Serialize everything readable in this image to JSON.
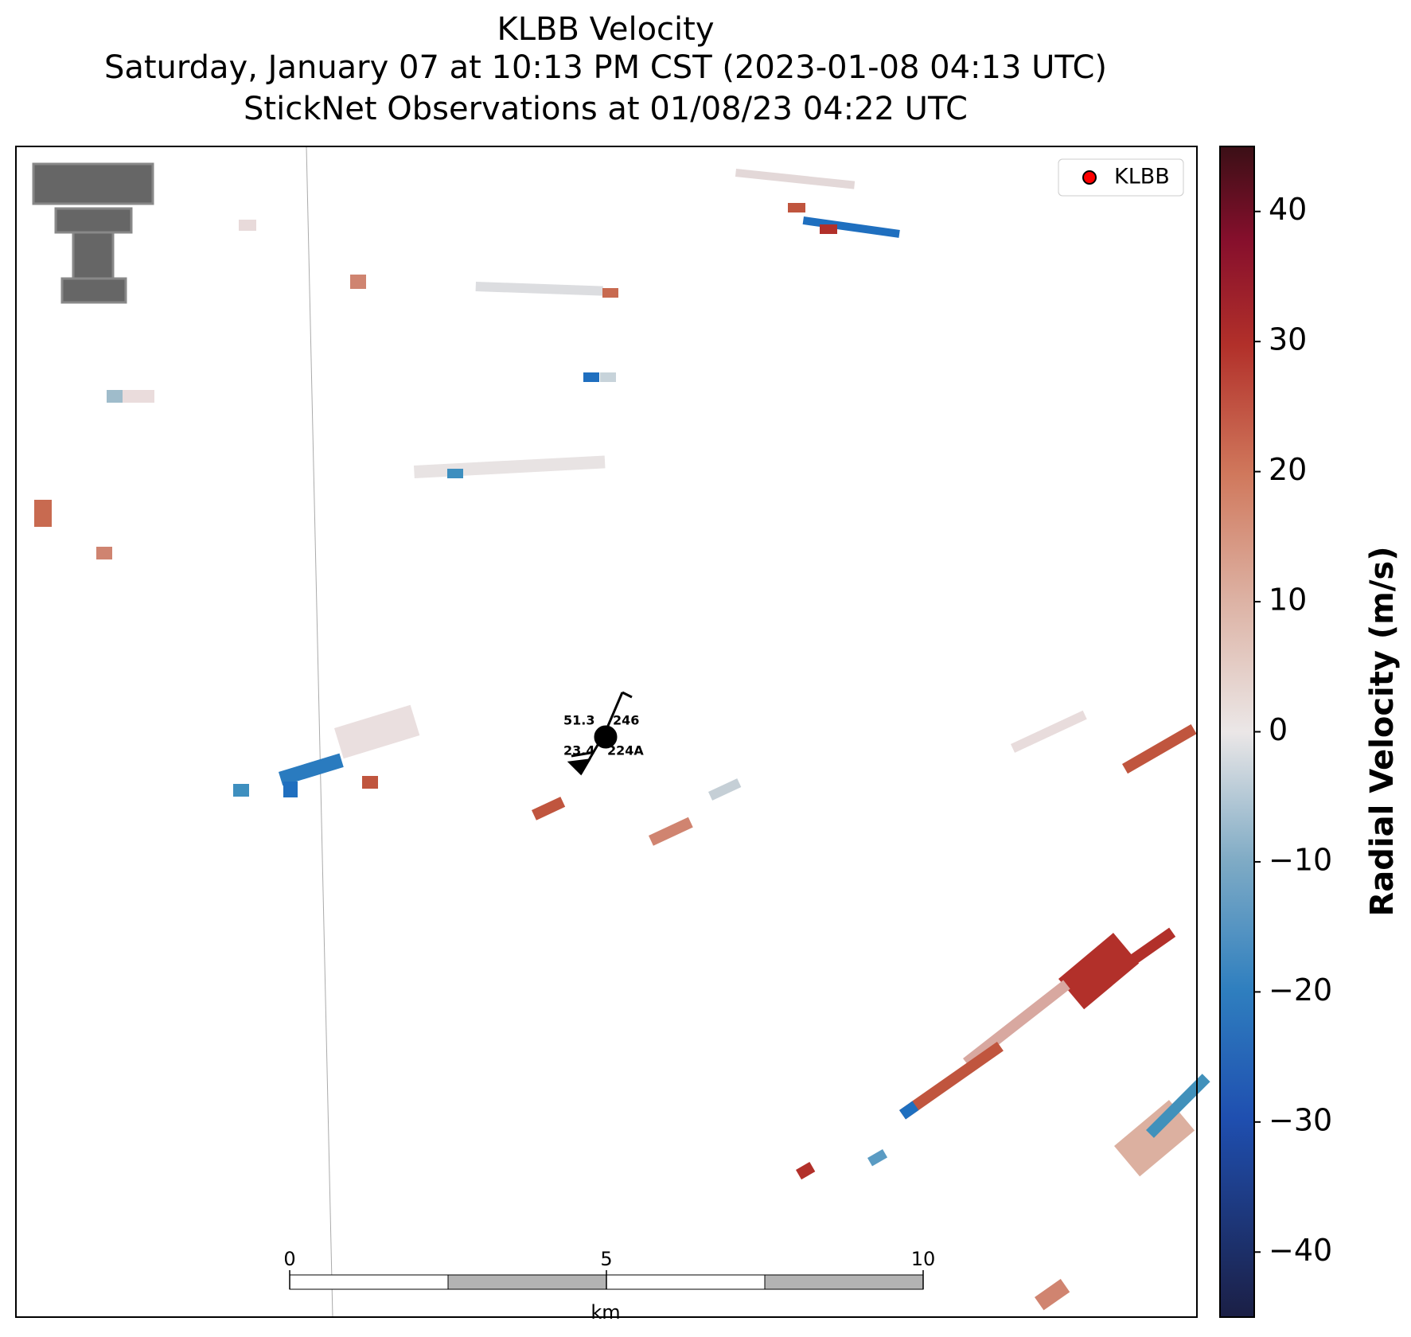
{
  "title": [
    "KLBB Velocity",
    "Saturday, January 07 at 10:13 PM CST (2023-01-08 04:13 UTC)",
    "StickNet Observations at 01/08/23 04:22 UTC"
  ],
  "legend": {
    "label": "KLBB",
    "color": "#ff0000"
  },
  "colorbar": {
    "label": "Radial Velocity (m/s)",
    "ylim": [
      -45,
      45
    ],
    "yticks": [
      {
        "value": -40,
        "label": "−40"
      },
      {
        "value": -30,
        "label": "−30"
      },
      {
        "value": -20,
        "label": "−20"
      },
      {
        "value": -10,
        "label": "−10"
      },
      0,
      10,
      20,
      30,
      40
    ]
  },
  "scale_bar": {
    "ticks": [
      0,
      5,
      10
    ],
    "unit": "km"
  },
  "stations": [
    {
      "id": "246",
      "value": 51.3,
      "color": "#b00000"
    },
    {
      "id": "224A",
      "value": 23.4,
      "color": "#006400"
    }
  ]
}
